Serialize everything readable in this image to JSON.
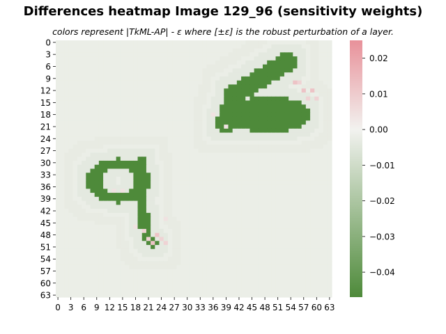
{
  "chart_data": {
    "type": "heatmap",
    "title": "Differences heatmap Image 129_96 (sensitivity weights)",
    "subtitle": "colors represent |TkML-AP| - ε where [±ε] is the robust perturbation of a layer.",
    "grid_size": [
      64,
      64
    ],
    "x_ticks": [
      "0",
      "3",
      "6",
      "9",
      "12",
      "15",
      "18",
      "21",
      "24",
      "27",
      "30",
      "33",
      "36",
      "39",
      "42",
      "45",
      "48",
      "51",
      "54",
      "57",
      "60",
      "63"
    ],
    "y_ticks": [
      "0",
      "3",
      "6",
      "9",
      "12",
      "15",
      "18",
      "21",
      "24",
      "27",
      "30",
      "33",
      "36",
      "39",
      "42",
      "45",
      "48",
      "51",
      "54",
      "57",
      "60",
      "63"
    ],
    "colorbar": {
      "min": -0.047,
      "max": 0.025,
      "ticks": [
        "0.02",
        "0.01",
        "0.00",
        "−0.01",
        "−0.02",
        "−0.03",
        "−0.04"
      ],
      "tick_values": [
        0.02,
        0.01,
        0.0,
        -0.01,
        -0.02,
        -0.03,
        -0.04
      ],
      "colors": {
        "low": "#4e8a3a",
        "mid": "#f2f2ef",
        "high": "#e8919a"
      }
    },
    "values_summary": {
      "background": -0.002,
      "halo_near": -0.004,
      "halo_outer": -0.003,
      "digit_strokes": -0.047,
      "positive_spots": [
        0.004,
        0.008,
        0.012
      ]
    }
  }
}
